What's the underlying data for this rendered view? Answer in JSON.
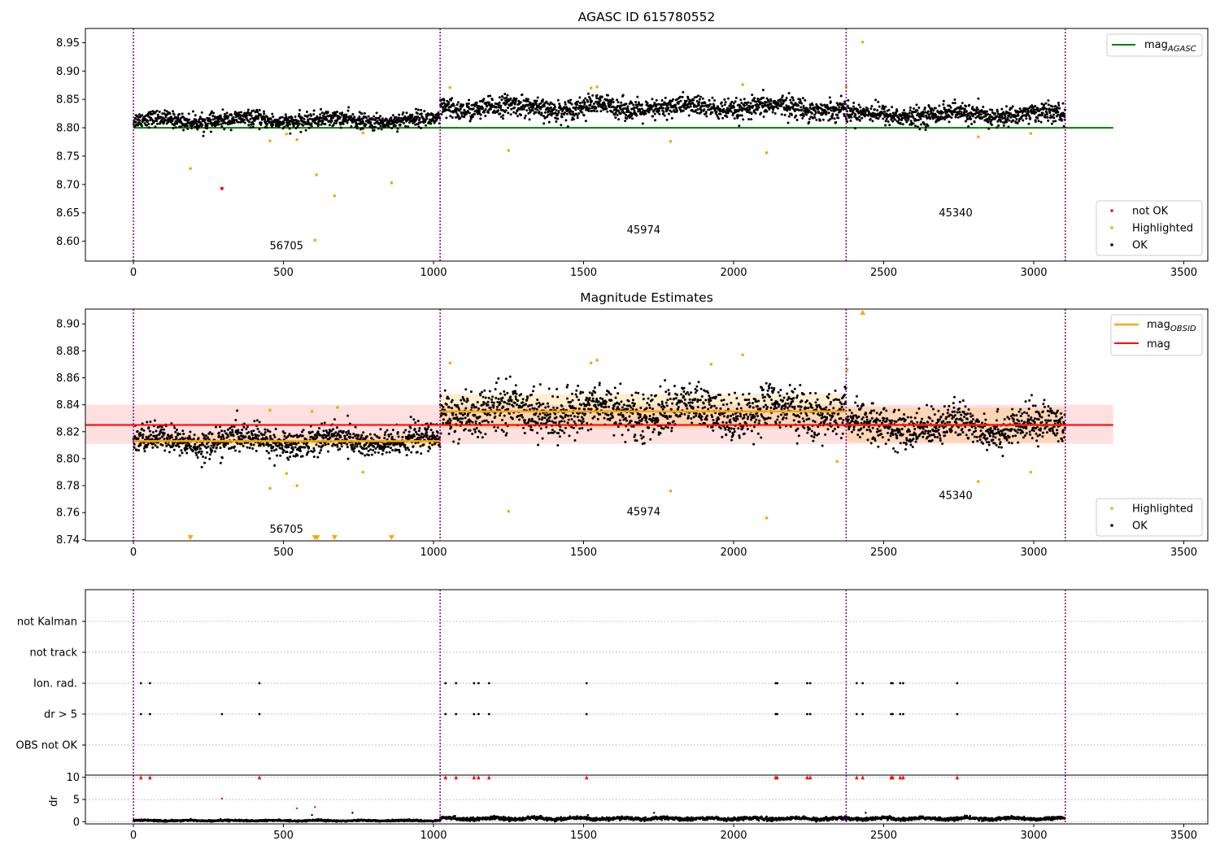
{
  "colors": {
    "ok": "#000000",
    "highlighted": "#ffa500",
    "not_ok": "#ff0000",
    "agasc_line": "#008000",
    "mag_line": "#ff0000",
    "mag_obsid_line": "#ffa500",
    "obsid_divider": "#800080",
    "grid": "#b0b0b0"
  },
  "chart_data": [
    {
      "id": "agasc",
      "type": "scatter",
      "title": "AGASC ID 615780552",
      "xlabel": "",
      "ylabel": "",
      "xlim": [
        -160,
        3580
      ],
      "ylim": [
        8.565,
        8.975
      ],
      "xticks": [
        0,
        500,
        1000,
        1500,
        2000,
        2500,
        3000,
        3500
      ],
      "yticks": [
        8.6,
        8.65,
        8.7,
        8.75,
        8.8,
        8.85,
        8.9,
        8.95
      ],
      "ytick_labels": [
        "8.60",
        "8.65",
        "8.70",
        "8.75",
        "8.80",
        "8.85",
        "8.90",
        "8.95"
      ],
      "obsid_boundaries": [
        0,
        1022,
        2375,
        3105
      ],
      "obsid_labels": [
        {
          "text": "56705",
          "x": 510,
          "y": 8.586
        },
        {
          "text": "45974",
          "x": 1700,
          "y": 8.614
        },
        {
          "text": "45340",
          "x": 2740,
          "y": 8.644
        }
      ],
      "lines": [
        {
          "name": "mag_{AGASC}",
          "y": 8.8,
          "x": [
            0,
            3265
          ],
          "color_key": "agasc_line"
        }
      ],
      "ok_series_segments": [
        {
          "x": [
            0,
            1022
          ],
          "mean": 8.813,
          "scatter": 0.009
        },
        {
          "x": [
            1022,
            2375
          ],
          "mean": 8.835,
          "scatter": 0.012
        },
        {
          "x": [
            2375,
            3105
          ],
          "mean": 8.823,
          "scatter": 0.011
        }
      ],
      "highlighted_points": [
        [
          190,
          8.728
        ],
        [
          455,
          8.777
        ],
        [
          510,
          8.789
        ],
        [
          545,
          8.779
        ],
        [
          610,
          8.717
        ],
        [
          605,
          8.602
        ],
        [
          670,
          8.68
        ],
        [
          765,
          8.791
        ],
        [
          860,
          8.703
        ],
        [
          1055,
          8.871
        ],
        [
          1250,
          8.76
        ],
        [
          1525,
          8.87
        ],
        [
          1545,
          8.872
        ],
        [
          1790,
          8.776
        ],
        [
          2030,
          8.876
        ],
        [
          2110,
          8.756
        ],
        [
          2375,
          8.873
        ],
        [
          2430,
          8.951
        ],
        [
          2815,
          8.784
        ],
        [
          2990,
          8.79
        ]
      ],
      "not_ok_points": [
        [
          295,
          8.693
        ]
      ],
      "legend_top": {
        "position": "top-right",
        "entries": [
          "mag_{AGASC}"
        ]
      },
      "legend_bottom": {
        "position": "bottom-right",
        "entries": [
          "not OK",
          "Highlighted",
          "OK"
        ]
      }
    },
    {
      "id": "magnitude_estimates",
      "type": "scatter",
      "title": "Magnitude Estimates",
      "xlabel": "",
      "ylabel": "",
      "xlim": [
        -160,
        3580
      ],
      "ylim": [
        8.739,
        8.911
      ],
      "xticks": [
        0,
        500,
        1000,
        1500,
        2000,
        2500,
        3000,
        3500
      ],
      "yticks": [
        8.74,
        8.76,
        8.78,
        8.8,
        8.82,
        8.84,
        8.86,
        8.88,
        8.9
      ],
      "ytick_labels": [
        "8.74",
        "8.76",
        "8.78",
        "8.80",
        "8.82",
        "8.84",
        "8.86",
        "8.88",
        "8.90"
      ],
      "obsid_boundaries": [
        0,
        1022,
        2375,
        3105
      ],
      "obsid_labels": [
        {
          "text": "56705",
          "x": 510,
          "y": 8.745
        },
        {
          "text": "45974",
          "x": 1700,
          "y": 8.758
        },
        {
          "text": "45340",
          "x": 2740,
          "y": 8.77
        }
      ],
      "mag": {
        "value": 8.825,
        "band": [
          8.811,
          8.84
        ],
        "x": [
          -160,
          3265
        ]
      },
      "mag_obsid": [
        {
          "x": [
            0,
            1022
          ],
          "value": 8.813,
          "band": [
            8.808,
            8.818
          ]
        },
        {
          "x": [
            1022,
            2375
          ],
          "value": 8.835,
          "band": [
            8.822,
            8.848
          ]
        },
        {
          "x": [
            2375,
            3105
          ],
          "value": 8.825,
          "band": [
            8.812,
            8.838
          ]
        }
      ],
      "ok_series_segments": [
        {
          "x": [
            0,
            1022
          ],
          "mean": 8.813,
          "scatter": 0.007
        },
        {
          "x": [
            1022,
            2375
          ],
          "mean": 8.835,
          "scatter": 0.011
        },
        {
          "x": [
            2375,
            3105
          ],
          "mean": 8.824,
          "scatter": 0.009
        }
      ],
      "highlighted_points": [
        [
          455,
          8.778
        ],
        [
          455,
          8.836
        ],
        [
          510,
          8.789
        ],
        [
          545,
          8.78
        ],
        [
          595,
          8.835
        ],
        [
          680,
          8.838
        ],
        [
          765,
          8.79
        ],
        [
          1055,
          8.871
        ],
        [
          1250,
          8.761
        ],
        [
          1525,
          8.871
        ],
        [
          1545,
          8.873
        ],
        [
          1790,
          8.776
        ],
        [
          1925,
          8.87
        ],
        [
          2030,
          8.877
        ],
        [
          2110,
          8.756
        ],
        [
          2345,
          8.798
        ],
        [
          2378,
          8.874
        ],
        [
          2378,
          8.866
        ],
        [
          2815,
          8.783
        ],
        [
          2990,
          8.79
        ]
      ],
      "below_range_markers": [
        190,
        605,
        612,
        670,
        860
      ],
      "above_range_markers": [
        2430
      ],
      "legend_top": {
        "position": "top-right",
        "entries": [
          "mag_{OBSID}",
          "mag"
        ]
      },
      "legend_bottom": {
        "position": "bottom-right",
        "entries": [
          "Highlighted",
          "OK"
        ]
      }
    },
    {
      "id": "flags",
      "type": "scatter",
      "title": "",
      "xlim": [
        -160,
        3580
      ],
      "categories": [
        "not Kalman",
        "not track",
        "Ion. rad.",
        "dr > 5",
        "OBS not OK"
      ],
      "obsid_boundaries": [
        0,
        1022,
        2375,
        3105
      ],
      "ion_rad_x": [
        25,
        55,
        420,
        1040,
        1075,
        1135,
        1150,
        1185,
        1510,
        2140,
        2145,
        2245,
        2255,
        2410,
        2430,
        2525,
        2530,
        2555,
        2565,
        2745
      ],
      "dr5_x": [
        25,
        55,
        295,
        420,
        1040,
        1075,
        1135,
        1150,
        1185,
        1510,
        2140,
        2145,
        2245,
        2255,
        2410,
        2430,
        2525,
        2530,
        2555,
        2565,
        2745
      ]
    },
    {
      "id": "dr",
      "type": "scatter",
      "ylabel": "dr",
      "xlim": [
        -160,
        3580
      ],
      "ylim": [
        -0.5,
        10.5
      ],
      "xticks": [
        0,
        500,
        1000,
        1500,
        2000,
        2500,
        3000,
        3500
      ],
      "yticks": [
        0,
        5,
        10
      ],
      "obsid_boundaries": [
        0,
        1022,
        2375,
        3105
      ],
      "segments": [
        {
          "x": [
            0,
            1022
          ],
          "mean": 0.25,
          "scatter": 0.15
        },
        {
          "x": [
            1022,
            2375
          ],
          "mean": 0.7,
          "scatter": 0.3
        },
        {
          "x": [
            2375,
            3105
          ],
          "mean": 0.7,
          "scatter": 0.3
        }
      ],
      "outlier_points": [
        [
          295,
          5.2
        ],
        [
          545,
          3.0
        ],
        [
          605,
          3.3
        ],
        [
          595,
          1.5
        ],
        [
          730,
          2.0
        ],
        [
          1735,
          2.0
        ],
        [
          2440,
          2.0
        ]
      ],
      "capped_markers_x": [
        25,
        55,
        420,
        1040,
        1075,
        1135,
        1150,
        1185,
        1510,
        2140,
        2145,
        2245,
        2255,
        2410,
        2430,
        2525,
        2530,
        2555,
        2565,
        2745
      ]
    }
  ]
}
